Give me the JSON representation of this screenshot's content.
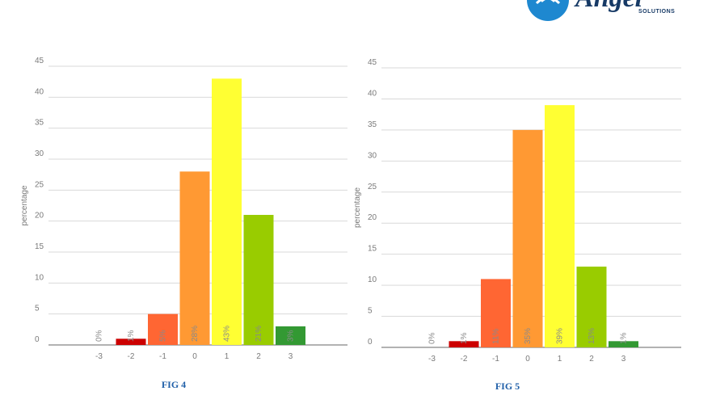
{
  "logo": {
    "wordmark": "Angel",
    "subtitle": "SOLUTIONS",
    "color": "#173a66",
    "accent": "#1e88d0"
  },
  "chart_data": [
    {
      "type": "bar",
      "caption": "FIG 4",
      "ylabel": "percentage",
      "ylim": [
        0,
        45
      ],
      "yticks": [
        0,
        5,
        10,
        15,
        20,
        25,
        30,
        35,
        40,
        45
      ],
      "grid": true,
      "categories": [
        "-3",
        "-2",
        "-1",
        "0",
        "1",
        "2",
        "3"
      ],
      "values": [
        0,
        1,
        5,
        28,
        43,
        21,
        3
      ],
      "labels": [
        "0%",
        "1%",
        "5%",
        "28%",
        "43%",
        "21%",
        "3%"
      ],
      "colors": [
        "#cccccc",
        "#cc0000",
        "#ff6633",
        "#ff9933",
        "#ffff33",
        "#99cc00",
        "#339933"
      ]
    },
    {
      "type": "bar",
      "caption": "FIG 5",
      "ylabel": "percentage",
      "ylim": [
        0,
        45
      ],
      "yticks": [
        0,
        5,
        10,
        15,
        20,
        25,
        30,
        35,
        40,
        45
      ],
      "grid": true,
      "categories": [
        "-3",
        "-2",
        "-1",
        "0",
        "1",
        "2",
        "3"
      ],
      "values": [
        0,
        1,
        11,
        35,
        39,
        13,
        1
      ],
      "labels": [
        "0%",
        "1%",
        "11%",
        "35%",
        "39%",
        "13%",
        "1%"
      ],
      "colors": [
        "#cccccc",
        "#cc0000",
        "#ff6633",
        "#ff9933",
        "#ffff33",
        "#99cc00",
        "#339933"
      ]
    }
  ]
}
